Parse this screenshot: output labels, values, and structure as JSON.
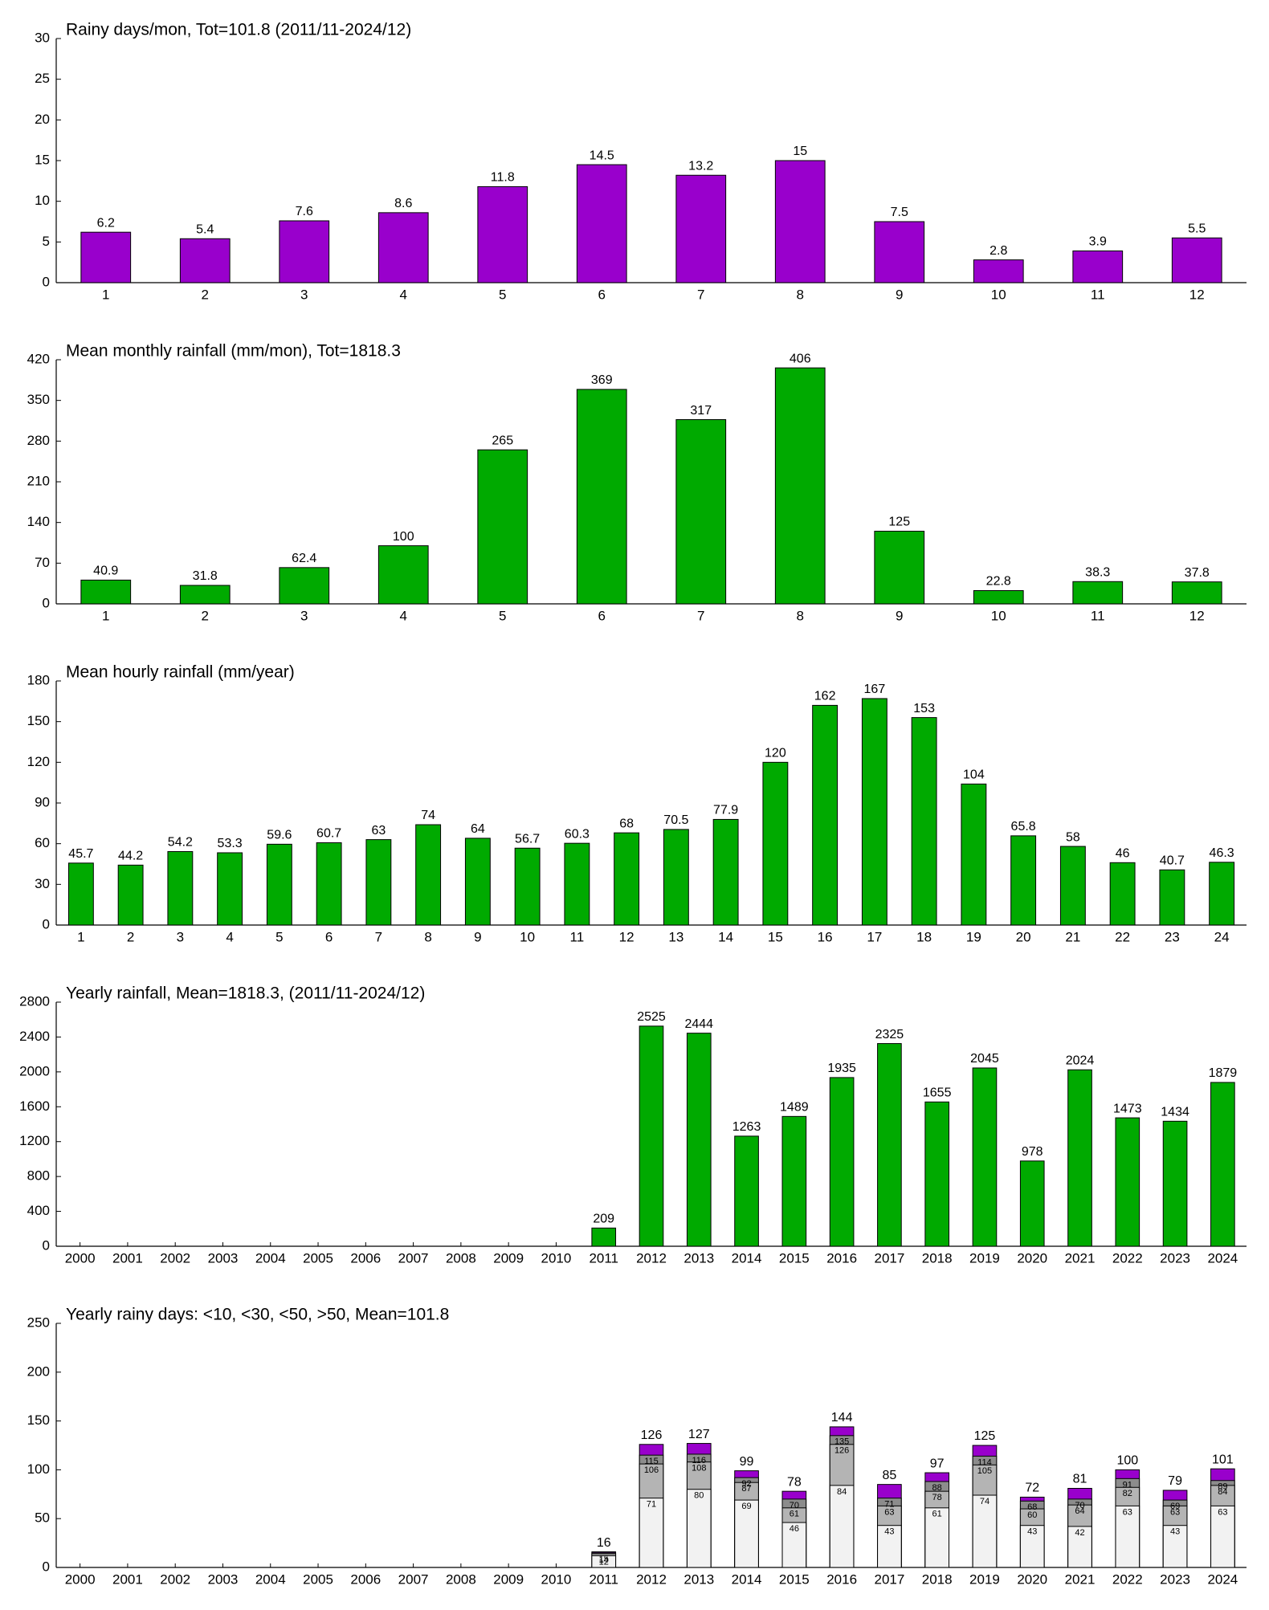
{
  "chart_data": [
    {
      "type": "bar",
      "title": "Rainy days/mon, Tot=101.8 (2011/11-2024/12)",
      "categories": [
        1,
        2,
        3,
        4,
        5,
        6,
        7,
        8,
        9,
        10,
        11,
        12
      ],
      "values": [
        6.2,
        5.4,
        7.6,
        8.6,
        11.8,
        14.5,
        13.2,
        15,
        7.5,
        2.8,
        3.9,
        5.5
      ],
      "color": "#9900cc",
      "ylim": [
        0,
        30
      ],
      "yticks": [
        0,
        5,
        10,
        15,
        20,
        25,
        30
      ]
    },
    {
      "type": "bar",
      "title": "Mean monthly rainfall (mm/mon), Tot=1818.3",
      "categories": [
        1,
        2,
        3,
        4,
        5,
        6,
        7,
        8,
        9,
        10,
        11,
        12
      ],
      "values": [
        40.9,
        31.8,
        62.4,
        100,
        265,
        369,
        317,
        406,
        125,
        22.8,
        38.3,
        37.8
      ],
      "color": "#00aa00",
      "ylim": [
        0,
        420
      ],
      "yticks": [
        0,
        70,
        140,
        210,
        280,
        350,
        420
      ]
    },
    {
      "type": "bar",
      "title": "Mean hourly rainfall (mm/year)",
      "categories": [
        1,
        2,
        3,
        4,
        5,
        6,
        7,
        8,
        9,
        10,
        11,
        12,
        13,
        14,
        15,
        16,
        17,
        18,
        19,
        20,
        21,
        22,
        23,
        24
      ],
      "values": [
        45.7,
        44.2,
        54.2,
        53.3,
        59.6,
        60.7,
        63,
        74,
        64,
        56.7,
        60.3,
        68,
        70.5,
        77.9,
        120,
        162,
        167,
        153,
        104,
        65.8,
        58,
        46,
        40.7,
        46.3
      ],
      "color": "#00aa00",
      "ylim": [
        0,
        180
      ],
      "yticks": [
        0,
        30,
        60,
        90,
        120,
        150,
        180
      ]
    },
    {
      "type": "bar",
      "title": "Yearly rainfall, Mean=1818.3, (2011/11-2024/12)",
      "categories": [
        "2000",
        "2001",
        "2002",
        "2003",
        "2004",
        "2005",
        "2006",
        "2007",
        "2008",
        "2009",
        "2010",
        "2011",
        "2012",
        "2013",
        "2014",
        "2015",
        "2016",
        "2017",
        "2018",
        "2019",
        "2020",
        "2021",
        "2022",
        "2023",
        "2024"
      ],
      "values": [
        null,
        null,
        null,
        null,
        null,
        null,
        null,
        null,
        null,
        null,
        null,
        209,
        2525,
        2444,
        1263,
        1489,
        1935,
        2325,
        1655,
        2045,
        978,
        2024,
        1473,
        1434,
        1879
      ],
      "color": "#00aa00",
      "ylim": [
        0,
        2800
      ],
      "yticks": [
        0,
        400,
        800,
        1200,
        1600,
        2000,
        2400,
        2800
      ]
    },
    {
      "type": "overlap-bar",
      "title": "Yearly rainy days: <10, <30, <50, >50, Mean=101.8",
      "categories": [
        "2000",
        "2001",
        "2002",
        "2003",
        "2004",
        "2005",
        "2006",
        "2007",
        "2008",
        "2009",
        "2010",
        "2011",
        "2012",
        "2013",
        "2014",
        "2015",
        "2016",
        "2017",
        "2018",
        "2019",
        "2020",
        "2021",
        "2022",
        "2023",
        "2024"
      ],
      "series": [
        {
          "color": "#f2f2f2",
          "values": [
            null,
            null,
            null,
            null,
            null,
            null,
            null,
            null,
            null,
            null,
            null,
            12,
            71,
            80,
            69,
            46,
            84,
            43,
            61,
            74,
            43,
            42,
            63,
            43,
            63
          ]
        },
        {
          "color": "#b4b4b4",
          "values": [
            null,
            null,
            null,
            null,
            null,
            null,
            null,
            null,
            null,
            null,
            null,
            14,
            106,
            108,
            87,
            61,
            126,
            63,
            78,
            105,
            60,
            64,
            82,
            63,
            84
          ]
        },
        {
          "color": "#8c8c8c",
          "values": [
            null,
            null,
            null,
            null,
            null,
            null,
            null,
            null,
            null,
            null,
            null,
            15,
            115,
            116,
            92,
            70,
            135,
            71,
            88,
            114,
            68,
            70,
            91,
            69,
            89
          ]
        },
        {
          "color": "#9900cc",
          "values": [
            null,
            null,
            null,
            null,
            null,
            null,
            null,
            null,
            null,
            null,
            null,
            16,
            126,
            127,
            99,
            78,
            144,
            85,
            97,
            125,
            72,
            81,
            100,
            79,
            101
          ]
        }
      ],
      "ylim": [
        0,
        250
      ],
      "yticks": [
        0,
        50,
        100,
        150,
        200,
        250
      ]
    }
  ]
}
